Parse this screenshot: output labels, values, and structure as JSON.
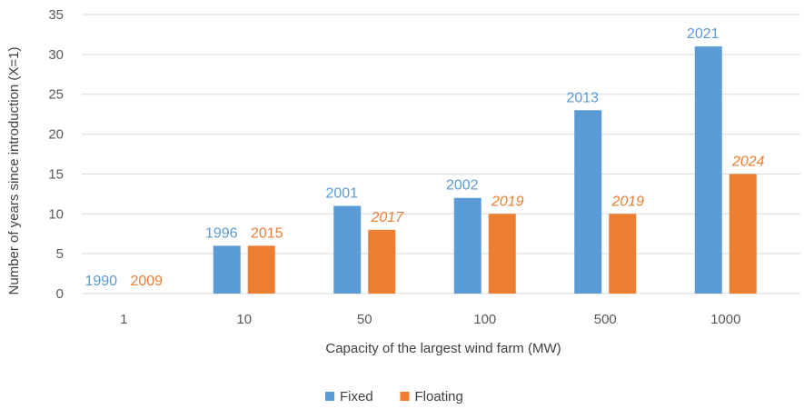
{
  "chart_data": {
    "type": "bar",
    "title": "",
    "xlabel": "Capacity of the largest wind farm (MW)",
    "ylabel": "Number of years since introduction (X=1)",
    "categories": [
      "1",
      "10",
      "50",
      "100",
      "500",
      "1000"
    ],
    "ylim": [
      0,
      35
    ],
    "yticks": [
      0,
      5,
      10,
      15,
      20,
      25,
      30,
      35
    ],
    "grid": true,
    "legend_position": "bottom",
    "series": [
      {
        "name": "Fixed",
        "color": "#5b9bd5",
        "values": [
          0,
          6,
          11,
          12,
          23,
          31
        ],
        "labels": [
          "1990",
          "1996",
          "2001",
          "2002",
          "2013",
          "2021"
        ],
        "label_italic": [
          false,
          false,
          false,
          false,
          false,
          false
        ]
      },
      {
        "name": "Floating",
        "color": "#ed7d31",
        "values": [
          0,
          6,
          8,
          10,
          10,
          15
        ],
        "labels": [
          "2009",
          "2015",
          "2017",
          "2019",
          "2019",
          "2024"
        ],
        "label_italic": [
          false,
          false,
          true,
          true,
          true,
          true
        ]
      }
    ]
  }
}
